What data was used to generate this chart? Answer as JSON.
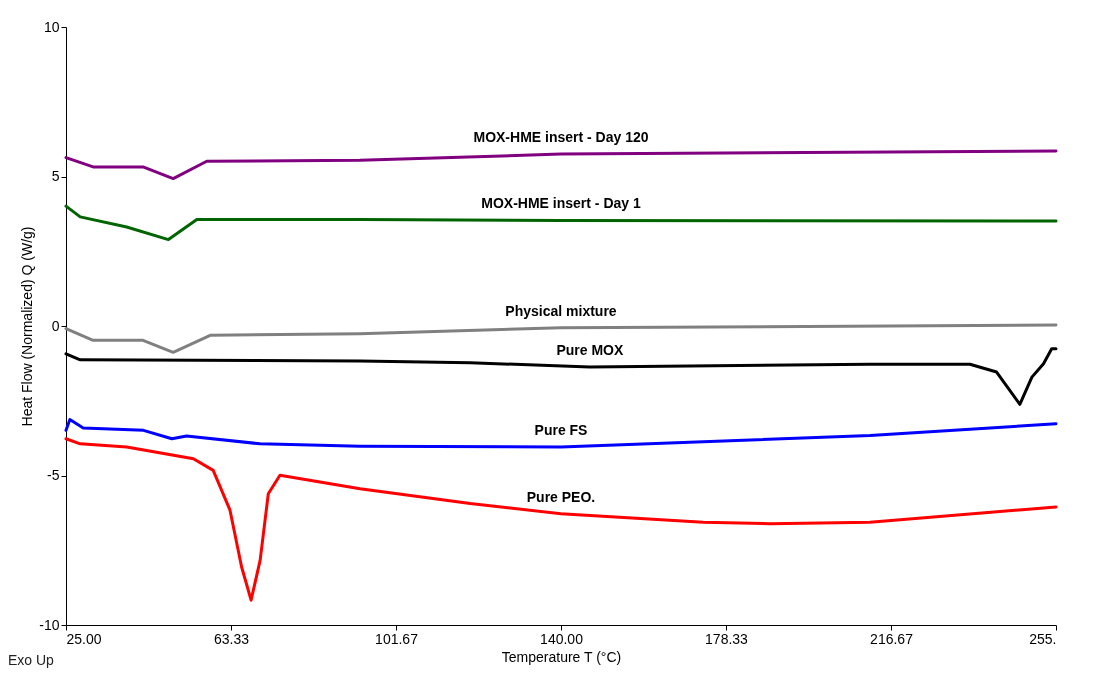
{
  "chart_data": {
    "type": "line",
    "xlabel": "Temperature T (°C)",
    "ylabel": "Heat Flow (Normalized) Q (W/g)",
    "xlim": [
      25,
      255
    ],
    "ylim": [
      -10,
      10
    ],
    "xticks": [
      {
        "value": 25,
        "label": "25.00"
      },
      {
        "value": 63.33,
        "label": "63.33"
      },
      {
        "value": 101.67,
        "label": "101.67"
      },
      {
        "value": 140,
        "label": "140.00"
      },
      {
        "value": 178.33,
        "label": "178.33"
      },
      {
        "value": 216.67,
        "label": "216.67"
      },
      {
        "value": 255,
        "label": "255."
      }
    ],
    "yticks": [
      -10,
      -5,
      0,
      5,
      10
    ],
    "grid": false,
    "legend": false,
    "line_style": "solid",
    "annotations": [
      "Exo Up"
    ],
    "series": [
      {
        "name": "MOX-HME insert - Day 120",
        "color": "#800080",
        "x": [
          25,
          31.3,
          42.9,
          49.9,
          57.7,
          93.3,
          140,
          255
        ],
        "values": [
          5.63,
          5.32,
          5.32,
          4.93,
          5.51,
          5.54,
          5.75,
          5.85
        ]
      },
      {
        "name": "MOX-HME insert - Day 1",
        "color": "#006400",
        "x": [
          25,
          28.3,
          39.1,
          48.8,
          55.4,
          93.3,
          140,
          255
        ],
        "values": [
          4.01,
          3.65,
          3.31,
          2.89,
          3.56,
          3.56,
          3.53,
          3.51
        ]
      },
      {
        "name": "Physical mixture",
        "color": "#808080",
        "x": [
          25,
          31.3,
          42.9,
          49.9,
          58.5,
          93.3,
          140,
          255
        ],
        "values": [
          -0.09,
          -0.48,
          -0.48,
          -0.88,
          -0.31,
          -0.26,
          -0.06,
          0.03
        ]
      },
      {
        "name": "Pure MOX",
        "color": "#000000",
        "x": [
          25,
          28.3,
          93.3,
          118.9,
          146.7,
          211.8,
          235,
          241.2,
          246.6,
          249.4,
          252.1,
          254,
          255
        ],
        "values": [
          -0.93,
          -1.13,
          -1.17,
          -1.23,
          -1.37,
          -1.28,
          -1.28,
          -1.54,
          -2.62,
          -1.71,
          -1.26,
          -0.76,
          -0.76
        ]
      },
      {
        "name": "Pure FS",
        "color": "#0000ff",
        "x": [
          25,
          25.9,
          29,
          43,
          49.6,
          53,
          70.1,
          93.3,
          140,
          211.8,
          255
        ],
        "values": [
          -3.49,
          -3.13,
          -3.41,
          -3.49,
          -3.77,
          -3.68,
          -3.94,
          -4.02,
          -4.05,
          -3.66,
          -3.27
        ]
      },
      {
        "name": "Pure PEO.",
        "color": "#ff0000",
        "x": [
          25,
          28.3,
          39.1,
          54.6,
          59.2,
          63.1,
          65.8,
          68,
          70.1,
          72,
          74.7,
          93.3,
          118.9,
          140,
          173,
          188.6,
          211.8,
          255
        ],
        "values": [
          -3.77,
          -3.94,
          -4.05,
          -4.44,
          -4.83,
          -6.16,
          -8.06,
          -9.17,
          -7.84,
          -5.61,
          -4.99,
          -5.44,
          -5.94,
          -6.28,
          -6.56,
          -6.61,
          -6.56,
          -6.05
        ]
      }
    ]
  }
}
